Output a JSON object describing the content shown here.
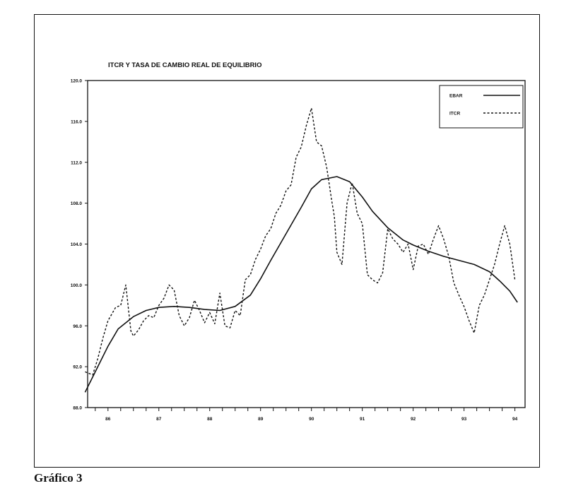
{
  "caption": "Gráfico 3",
  "chart_data": {
    "type": "line",
    "title": "ITCR Y TASA DE CAMBIO REAL DE EQUILIBRIO",
    "xlabel": "",
    "ylabel": "",
    "xlim": [
      1985.6,
      1994.2
    ],
    "ylim": [
      88.0,
      120.0
    ],
    "y_ticks": [
      "88.0",
      "92.0",
      "96.0",
      "100.0",
      "104.0",
      "108.0",
      "112.0",
      "116.0",
      "120.0"
    ],
    "x_ticks": [
      {
        "label": "86",
        "x": 1986.0
      },
      {
        "label": "87",
        "x": 1987.0
      },
      {
        "label": "88",
        "x": 1988.0
      },
      {
        "label": "89",
        "x": 1989.0
      },
      {
        "label": "90",
        "x": 1990.0
      },
      {
        "label": "91",
        "x": 1991.0
      },
      {
        "label": "92",
        "x": 1992.0
      },
      {
        "label": "93",
        "x": 1993.0
      },
      {
        "label": "94",
        "x": 1994.0
      }
    ],
    "grid": false,
    "legend_position": "top-right",
    "series": [
      {
        "name": "EBAR",
        "style": "solid",
        "color": "#111111",
        "x": [
          1985.55,
          1985.8,
          1986.0,
          1986.2,
          1986.5,
          1986.75,
          1987.0,
          1987.3,
          1987.6,
          1987.9,
          1988.2,
          1988.5,
          1988.8,
          1989.0,
          1989.2,
          1989.5,
          1989.8,
          1990.0,
          1990.2,
          1990.5,
          1990.75,
          1991.0,
          1991.2,
          1991.5,
          1991.8,
          1992.0,
          1992.3,
          1992.6,
          1992.9,
          1993.2,
          1993.5,
          1993.7,
          1993.9,
          1994.05
        ],
        "y": [
          89.5,
          92.0,
          94.0,
          95.7,
          96.9,
          97.5,
          97.8,
          97.9,
          97.8,
          97.6,
          97.5,
          97.9,
          99.0,
          100.6,
          102.4,
          105.0,
          107.6,
          109.4,
          110.3,
          110.6,
          110.1,
          108.6,
          107.2,
          105.6,
          104.4,
          103.9,
          103.3,
          102.8,
          102.4,
          102.0,
          101.3,
          100.4,
          99.4,
          98.3
        ]
      },
      {
        "name": "ITCR",
        "style": "dashed",
        "color": "#111111",
        "x": [
          1985.55,
          1985.7,
          1985.8,
          1985.9,
          1986.0,
          1986.15,
          1986.25,
          1986.35,
          1986.45,
          1986.5,
          1986.6,
          1986.7,
          1986.8,
          1986.9,
          1987.0,
          1987.1,
          1987.2,
          1987.3,
          1987.4,
          1987.5,
          1987.6,
          1987.7,
          1987.8,
          1987.9,
          1988.0,
          1988.1,
          1988.2,
          1988.3,
          1988.4,
          1988.5,
          1988.6,
          1988.7,
          1988.8,
          1988.9,
          1989.0,
          1989.1,
          1989.2,
          1989.3,
          1989.4,
          1989.5,
          1989.6,
          1989.7,
          1989.8,
          1989.9,
          1990.0,
          1990.1,
          1990.2,
          1990.3,
          1990.4,
          1990.45,
          1990.5,
          1990.6,
          1990.7,
          1990.8,
          1990.9,
          1991.0,
          1991.1,
          1991.2,
          1991.3,
          1991.4,
          1991.5,
          1991.6,
          1991.7,
          1991.8,
          1991.9,
          1992.0,
          1992.1,
          1992.2,
          1992.3,
          1992.4,
          1992.5,
          1992.6,
          1992.7,
          1992.8,
          1992.9,
          1993.0,
          1993.1,
          1993.2,
          1993.3,
          1993.4,
          1993.5,
          1993.6,
          1993.7,
          1993.8,
          1993.9,
          1994.0
        ],
        "y": [
          91.5,
          91.2,
          92.8,
          94.8,
          96.5,
          97.8,
          98.0,
          100.0,
          95.5,
          95.0,
          95.6,
          96.5,
          97.0,
          96.8,
          98.0,
          98.7,
          100.0,
          99.5,
          97.0,
          96.0,
          96.8,
          98.5,
          97.5,
          96.3,
          97.3,
          96.2,
          99.2,
          96.0,
          95.8,
          97.5,
          97.0,
          100.5,
          101.0,
          102.5,
          103.5,
          104.8,
          105.5,
          107.0,
          107.8,
          109.2,
          109.8,
          112.5,
          113.5,
          115.6,
          117.3,
          114.0,
          113.6,
          111.5,
          108.2,
          106.7,
          103.2,
          102.0,
          108.0,
          110.0,
          107.0,
          106.0,
          101.0,
          100.5,
          100.2,
          101.2,
          105.5,
          104.5,
          104.0,
          103.2,
          104.0,
          101.5,
          103.8,
          104.0,
          103.0,
          104.5,
          105.8,
          104.5,
          102.8,
          100.2,
          99.0,
          97.9,
          96.5,
          95.3,
          98.0,
          99.0,
          100.5,
          102.0,
          104.0,
          105.8,
          104.0,
          100.5
        ]
      }
    ]
  }
}
